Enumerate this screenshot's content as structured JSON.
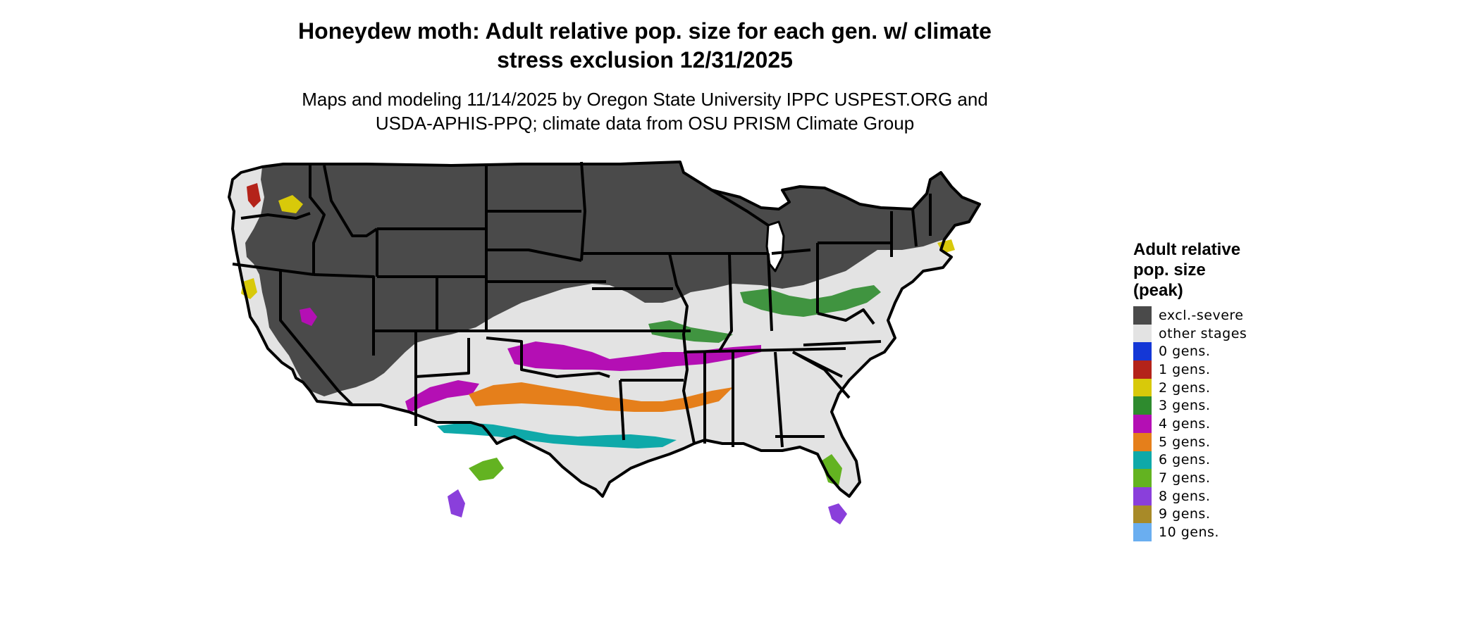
{
  "title_line1": "Honeydew moth: Adult relative pop. size for each gen. w/ climate",
  "title_line2": "stress exclusion 12/31/2025",
  "subtitle_line1": "Maps and modeling 11/14/2025 by Oregon State University IPPC USPEST.ORG and",
  "subtitle_line2": "USDA-APHIS-PPQ; climate data from OSU PRISM Climate Group",
  "legend": {
    "title_lines": [
      "Adult relative",
      "pop. size",
      "(peak)"
    ],
    "items": [
      {
        "label": "excl.-severe",
        "color": "#4a4a4a"
      },
      {
        "label": "other stages",
        "color": "#e3e3e3"
      },
      {
        "label": "0 gens.",
        "color": "#1437d6"
      },
      {
        "label": "1 gens.",
        "color": "#b4231a"
      },
      {
        "label": "2 gens.",
        "color": "#d8c90a"
      },
      {
        "label": "3 gens.",
        "color": "#2e8b2e"
      },
      {
        "label": "4 gens.",
        "color": "#b40fb4"
      },
      {
        "label": "5 gens.",
        "color": "#e57f1b"
      },
      {
        "label": "6 gens.",
        "color": "#0fa9a9"
      },
      {
        "label": "7 gens.",
        "color": "#63b321"
      },
      {
        "label": "8 gens.",
        "color": "#8a3fdb"
      },
      {
        "label": "9 gens.",
        "color": "#a88a28"
      },
      {
        "label": "10 gens.",
        "color": "#6aaef0"
      }
    ]
  }
}
